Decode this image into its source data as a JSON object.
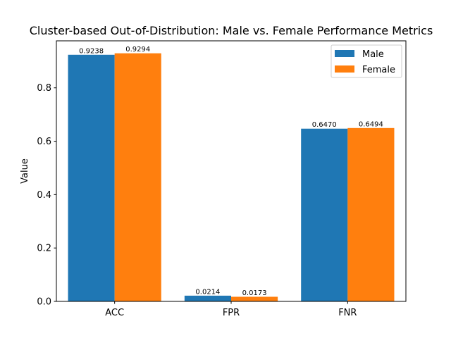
{
  "chart_data": {
    "type": "bar",
    "title": "Cluster-based Out-of-Distribution: Male vs. Female Performance Metrics",
    "xlabel": "",
    "ylabel": "Value",
    "categories": [
      "ACC",
      "FPR",
      "FNR"
    ],
    "series": [
      {
        "name": "Male",
        "color": "#1f77b4",
        "values": [
          0.9238,
          0.0214,
          0.647
        ],
        "labels": [
          "0.9238",
          "0.0214",
          "0.6470"
        ]
      },
      {
        "name": "Female",
        "color": "#ff7f0e",
        "values": [
          0.9294,
          0.0173,
          0.6494
        ],
        "labels": [
          "0.9294",
          "0.0173",
          "0.6494"
        ]
      }
    ],
    "ylim": [
      0,
      0.976
    ],
    "yticks": [
      0.0,
      0.2,
      0.4,
      0.6,
      0.8
    ],
    "ytick_labels": [
      "0.0",
      "0.2",
      "0.4",
      "0.6",
      "0.8"
    ],
    "grid": false,
    "legend_position": "top-right"
  }
}
